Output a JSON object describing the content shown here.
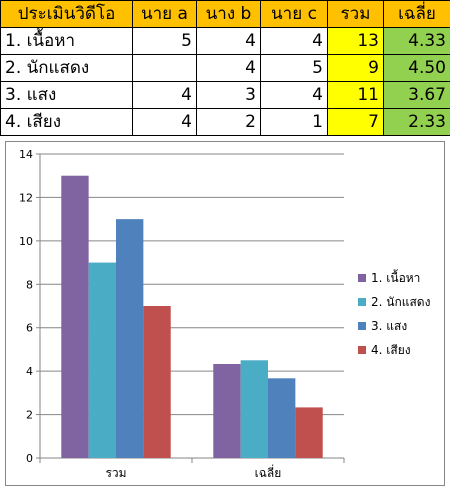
{
  "table": {
    "headers": [
      "ประเมินวิดีโอ",
      "นาย a",
      "นาง b",
      "นาย c",
      "รวม",
      "เฉลี่ย"
    ],
    "rows": [
      {
        "label": "1. เนื้อหา",
        "a": "5",
        "b": "4",
        "c": "4",
        "sum": "13",
        "avg": "4.33"
      },
      {
        "label": "2. นักแสดง",
        "a": "",
        "b": "4",
        "c": "5",
        "sum": "9",
        "avg": "4.50"
      },
      {
        "label": "3. แสง",
        "a": "4",
        "b": "3",
        "c": "4",
        "sum": "11",
        "avg": "3.67"
      },
      {
        "label": "4. เสียง",
        "a": "4",
        "b": "2",
        "c": "1",
        "sum": "7",
        "avg": "2.33"
      }
    ]
  },
  "chart_data": {
    "type": "bar",
    "categories": [
      "รวม",
      "เฉลี่ย"
    ],
    "series": [
      {
        "name": "1. เนื้อหา",
        "values": [
          13,
          4.33
        ],
        "color": "#8064a2"
      },
      {
        "name": "2. นักแสดง",
        "values": [
          9,
          4.5
        ],
        "color": "#4bacc6"
      },
      {
        "name": "3. แสง",
        "values": [
          11,
          3.67
        ],
        "color": "#4f81bd"
      },
      {
        "name": "4. เสียง",
        "values": [
          7,
          2.33
        ],
        "color": "#c0504d"
      }
    ],
    "ylim": [
      0,
      14
    ],
    "yticks": [
      0,
      2,
      4,
      6,
      8,
      10,
      12,
      14
    ],
    "grid": true,
    "legend": "right"
  }
}
